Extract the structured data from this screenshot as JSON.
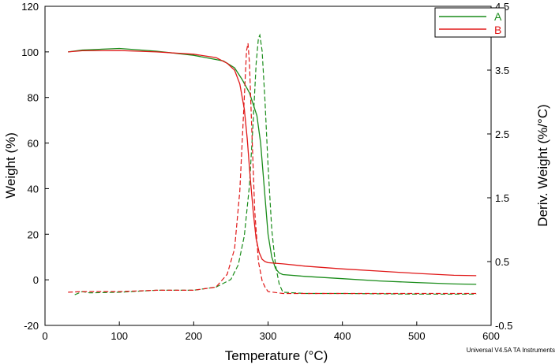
{
  "chart_data": {
    "type": "line",
    "xlabel": "Temperature (°C)",
    "ylabel": "Weight (%)",
    "y2label": "Deriv. Weight (%/°C)",
    "xlim": [
      0,
      600
    ],
    "ylim": [
      -20,
      120
    ],
    "y2lim": [
      -0.5,
      4.5
    ],
    "x_ticks": [
      "0",
      "100",
      "200",
      "300",
      "400",
      "500",
      "600"
    ],
    "y_ticks": [
      "-20",
      "0",
      "20",
      "40",
      "60",
      "80",
      "100",
      "120"
    ],
    "y2_ticks": [
      "-0.5",
      "0.5",
      "1.5",
      "2.5",
      "3.5",
      "4.5"
    ],
    "grid": false,
    "legend_position": "top-right",
    "footer": "Universal V4.5A TA Instruments",
    "series": [
      {
        "name": "A",
        "color": "#1a8c1a",
        "weight": {
          "x": [
            31,
            50,
            100,
            150,
            200,
            240,
            255,
            265,
            275,
            285,
            290,
            295,
            300,
            305,
            310,
            315,
            320,
            350,
            400,
            450,
            500,
            550,
            580
          ],
          "y": [
            100.0,
            100.8,
            101.5,
            100.3,
            98.5,
            96.0,
            93.0,
            88.0,
            82.0,
            72.0,
            60.0,
            40.0,
            20.0,
            10.0,
            5.0,
            3.0,
            2.3,
            1.5,
            0.5,
            -0.5,
            -1.2,
            -1.8,
            -2.0
          ]
        },
        "deriv": {
          "x": [
            40,
            50,
            60,
            100,
            150,
            200,
            230,
            250,
            260,
            268,
            275,
            280,
            284,
            287,
            289,
            292,
            296,
            300,
            305,
            310,
            315,
            320,
            350,
            400,
            500,
            580
          ],
          "y": [
            -0.02,
            0.03,
            0.01,
            0.02,
            0.05,
            0.05,
            0.1,
            0.22,
            0.45,
            0.9,
            1.7,
            2.7,
            3.6,
            4.0,
            4.05,
            3.8,
            3.0,
            2.0,
            1.0,
            0.45,
            0.15,
            0.02,
            0.0,
            0.0,
            -0.01,
            -0.01
          ]
        }
      },
      {
        "name": "B",
        "color": "#e01818",
        "weight": {
          "x": [
            31,
            50,
            100,
            150,
            200,
            230,
            245,
            255,
            262,
            268,
            272,
            276,
            280,
            284,
            288,
            292,
            296,
            300,
            320,
            350,
            400,
            450,
            500,
            550,
            580
          ],
          "y": [
            100.0,
            100.5,
            100.6,
            100.0,
            99.0,
            97.5,
            95.0,
            92.0,
            86.0,
            75.0,
            62.0,
            45.0,
            30.0,
            18.0,
            12.0,
            9.0,
            8.0,
            7.5,
            7.0,
            6.0,
            4.8,
            3.8,
            2.8,
            2.0,
            1.8
          ]
        },
        "deriv": {
          "x": [
            31,
            50,
            100,
            150,
            200,
            230,
            245,
            255,
            262,
            267,
            271,
            273,
            275,
            278,
            282,
            287,
            292,
            296,
            300,
            320,
            350,
            400,
            500,
            580
          ],
          "y": [
            0.02,
            0.03,
            0.03,
            0.05,
            0.05,
            0.1,
            0.3,
            0.7,
            1.6,
            2.8,
            3.8,
            3.92,
            3.6,
            2.6,
            1.3,
            0.5,
            0.2,
            0.1,
            0.03,
            0.0,
            0.0,
            0.0,
            0.0,
            0.0
          ]
        }
      }
    ]
  }
}
